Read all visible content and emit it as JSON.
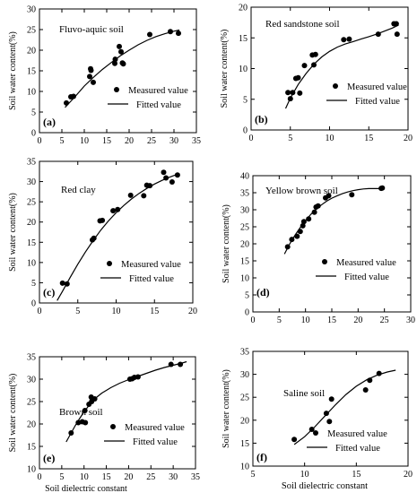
{
  "figure": {
    "ylabel": "Soil water content(%)",
    "xlabel_left": "Soil dielectric constant",
    "xlabel_right": "Soil dielectric constant",
    "legend_measured": "Measured value",
    "legend_fitted": "Fitted value"
  },
  "chart_data": [
    {
      "type": "scatter",
      "panel": "(a)",
      "title": "Fluvo-aquic soil",
      "xlim": [
        0,
        35
      ],
      "ylim": [
        0,
        30
      ],
      "xticks": [
        0,
        5,
        10,
        15,
        20,
        25,
        30,
        35
      ],
      "yticks": [
        0,
        5,
        10,
        15,
        20,
        25,
        30
      ],
      "series": [
        {
          "name": "Measured value",
          "points": [
            [
              6,
              7.2
            ],
            [
              7,
              8.7
            ],
            [
              7.6,
              8.8
            ],
            [
              11.2,
              13.6
            ],
            [
              11.4,
              15.5
            ],
            [
              11.5,
              15.1
            ],
            [
              12,
              12.2
            ],
            [
              16.8,
              16.8
            ],
            [
              16.9,
              17.8
            ],
            [
              17.8,
              20.9
            ],
            [
              18.2,
              19.6
            ],
            [
              18.5,
              16.9
            ],
            [
              18.7,
              16.7
            ],
            [
              24.6,
              23.8
            ],
            [
              29.2,
              24.5
            ],
            [
              31,
              24.1
            ]
          ]
        },
        {
          "name": "Fitted value",
          "line": [
            [
              5.7,
              6.1
            ],
            [
              8,
              8.8
            ],
            [
              10,
              11.3
            ],
            [
              12,
              13.4
            ],
            [
              14,
              15.3
            ],
            [
              16,
              17
            ],
            [
              18,
              18.6
            ],
            [
              20,
              20
            ],
            [
              22,
              21.3
            ],
            [
              24,
              22.4
            ],
            [
              26,
              23.3
            ],
            [
              28,
              24
            ],
            [
              30,
              24.6
            ],
            [
              31.2,
              24.9
            ]
          ]
        }
      ]
    },
    {
      "type": "scatter",
      "panel": "(b)",
      "title": "Red sandstone soil",
      "xlim": [
        0,
        20
      ],
      "ylim": [
        0,
        20
      ],
      "xticks": [
        0,
        5,
        10,
        15,
        20
      ],
      "yticks": [
        0,
        5,
        10,
        15,
        20
      ],
      "series": [
        {
          "name": "Measured value",
          "points": [
            [
              4.7,
              6.1
            ],
            [
              5,
              5.1
            ],
            [
              5.3,
              6.1
            ],
            [
              5.7,
              8.4
            ],
            [
              6,
              8.5
            ],
            [
              6.2,
              6
            ],
            [
              6.8,
              10.5
            ],
            [
              7.8,
              12.2
            ],
            [
              8,
              10.6
            ],
            [
              8.2,
              12.3
            ],
            [
              11.8,
              14.7
            ],
            [
              12.5,
              14.8
            ],
            [
              16.2,
              15.6
            ],
            [
              18.2,
              17.3
            ],
            [
              18.5,
              17.3
            ],
            [
              18.6,
              15.6
            ]
          ]
        },
        {
          "name": "Fitted value",
          "line": [
            [
              4.4,
              3.5
            ],
            [
              5,
              5.2
            ],
            [
              6,
              7.4
            ],
            [
              7,
              9.2
            ],
            [
              8,
              10.7
            ],
            [
              9,
              11.9
            ],
            [
              10,
              12.8
            ],
            [
              11,
              13.5
            ],
            [
              12,
              14
            ],
            [
              13,
              14.4
            ],
            [
              14,
              14.8
            ],
            [
              15,
              15.2
            ],
            [
              16,
              15.6
            ],
            [
              17,
              16.1
            ],
            [
              18,
              16.6
            ],
            [
              18.8,
              17.1
            ]
          ]
        }
      ]
    },
    {
      "type": "scatter",
      "panel": "(c)",
      "title": "Red clay",
      "xlim": [
        0,
        20
      ],
      "ylim": [
        0,
        35
      ],
      "xticks": [
        0,
        5,
        10,
        15,
        20
      ],
      "yticks": [
        0,
        5,
        10,
        15,
        20,
        25,
        30,
        35
      ],
      "series": [
        {
          "name": "Measured value",
          "points": [
            [
              3,
              4.9
            ],
            [
              3.6,
              4.7
            ],
            [
              6.9,
              15.6
            ],
            [
              7.1,
              16
            ],
            [
              7.9,
              20.3
            ],
            [
              8.2,
              20.4
            ],
            [
              9.6,
              22.8
            ],
            [
              10.2,
              23.1
            ],
            [
              11.9,
              26.6
            ],
            [
              13.6,
              26.5
            ],
            [
              14,
              29.1
            ],
            [
              14.4,
              29
            ],
            [
              16.2,
              32.3
            ],
            [
              16.5,
              30.9
            ],
            [
              17.3,
              29.9
            ],
            [
              18,
              31.6
            ]
          ]
        },
        {
          "name": "Fitted value",
          "line": [
            [
              2.3,
              0.6
            ],
            [
              3,
              2.9
            ],
            [
              4,
              6.3
            ],
            [
              5,
              9.6
            ],
            [
              6,
              12.6
            ],
            [
              7,
              15.4
            ],
            [
              8,
              18
            ],
            [
              9,
              20.3
            ],
            [
              10,
              22.3
            ],
            [
              11,
              24.1
            ],
            [
              12,
              25.7
            ],
            [
              13,
              27.1
            ],
            [
              14,
              28.3
            ],
            [
              15,
              29.4
            ],
            [
              16,
              30.3
            ],
            [
              17,
              31.1
            ],
            [
              17.7,
              31.6
            ]
          ]
        }
      ]
    },
    {
      "type": "scatter",
      "panel": "(d)",
      "title": "Yellow brown soil",
      "xlim": [
        0,
        30
      ],
      "ylim": [
        0,
        40
      ],
      "xticks": [
        0,
        5,
        10,
        15,
        20,
        25,
        30
      ],
      "yticks": [
        0,
        5,
        10,
        15,
        20,
        25,
        30,
        35,
        40
      ],
      "series": [
        {
          "name": "Measured value",
          "points": [
            [
              6.6,
              19.1
            ],
            [
              7.4,
              21.3
            ],
            [
              8.4,
              22.2
            ],
            [
              9,
              23.6
            ],
            [
              9.5,
              25.3
            ],
            [
              9.7,
              26.5
            ],
            [
              10.6,
              27.3
            ],
            [
              11.7,
              29.3
            ],
            [
              12,
              30.8
            ],
            [
              12.4,
              31.1
            ],
            [
              13.8,
              33.5
            ],
            [
              14.4,
              34.1
            ],
            [
              18.8,
              34.4
            ],
            [
              24.4,
              36.3
            ],
            [
              24.6,
              36.4
            ]
          ]
        },
        {
          "name": "Fitted value",
          "line": [
            [
              6,
              17
            ],
            [
              7,
              20
            ],
            [
              8,
              22.5
            ],
            [
              9,
              24.8
            ],
            [
              10,
              26.8
            ],
            [
              11,
              28.6
            ],
            [
              12,
              30.1
            ],
            [
              13,
              31.4
            ],
            [
              14,
              32.5
            ],
            [
              15,
              33.4
            ],
            [
              16,
              34.1
            ],
            [
              17,
              34.7
            ],
            [
              18,
              35.2
            ],
            [
              19,
              35.6
            ],
            [
              20,
              35.9
            ],
            [
              21,
              36.1
            ],
            [
              22,
              36.2
            ],
            [
              23,
              36.2
            ],
            [
              24.6,
              36.2
            ]
          ]
        }
      ]
    },
    {
      "type": "scatter",
      "panel": "(e)",
      "title": "Brown soil",
      "xlabel": "Soil dielectric constant",
      "xlim": [
        0,
        35
      ],
      "ylim": [
        10,
        35
      ],
      "xticks": [
        0,
        5,
        10,
        15,
        20,
        25,
        30,
        35
      ],
      "yticks": [
        10,
        15,
        20,
        25,
        30,
        35
      ],
      "series": [
        {
          "name": "Measured value",
          "points": [
            [
              7.1,
              18
            ],
            [
              8.7,
              20.3
            ],
            [
              9.6,
              20.5
            ],
            [
              10.2,
              23
            ],
            [
              10.3,
              20.3
            ],
            [
              11.1,
              24.4
            ],
            [
              11.6,
              26
            ],
            [
              11.7,
              25
            ],
            [
              12.4,
              25.6
            ],
            [
              20.3,
              30
            ],
            [
              20.8,
              30.1
            ],
            [
              21.3,
              30.4
            ],
            [
              22.1,
              30.5
            ],
            [
              29.5,
              33.3
            ],
            [
              31.6,
              33.3
            ]
          ]
        },
        {
          "name": "Fitted value",
          "line": [
            [
              6,
              16
            ],
            [
              7,
              17.8
            ],
            [
              8,
              19.6
            ],
            [
              9,
              21.2
            ],
            [
              10,
              22.7
            ],
            [
              11,
              24
            ],
            [
              12,
              25.1
            ],
            [
              13,
              26.1
            ],
            [
              14,
              26.9
            ],
            [
              15,
              27.5
            ],
            [
              16,
              28.1
            ],
            [
              17,
              28.6
            ],
            [
              18,
              29.1
            ],
            [
              19,
              29.5
            ],
            [
              20,
              29.9
            ],
            [
              22,
              30.6
            ],
            [
              24,
              31.3
            ],
            [
              26,
              32
            ],
            [
              28,
              32.6
            ],
            [
              30,
              33.1
            ],
            [
              32,
              33.6
            ],
            [
              33,
              33.9
            ]
          ]
        }
      ]
    },
    {
      "type": "scatter",
      "panel": "(f)",
      "title": "Saline soil",
      "xlabel": "Soil dielectric constant",
      "xlim": [
        5,
        20
      ],
      "ylim": [
        10,
        35
      ],
      "xticks": [
        5,
        10,
        15,
        20
      ],
      "yticks": [
        10,
        15,
        20,
        25,
        30,
        35
      ],
      "series": [
        {
          "name": "Measured value",
          "points": [
            [
              9,
              15.8
            ],
            [
              10.7,
              18
            ],
            [
              12.1,
              21.5
            ],
            [
              12.4,
              19.7
            ],
            [
              12.6,
              24.6
            ],
            [
              15.9,
              26.6
            ],
            [
              16.3,
              28.7
            ],
            [
              17.2,
              30.2
            ]
          ]
        },
        {
          "name": "Fitted value",
          "line": [
            [
              9,
              14.7
            ],
            [
              10,
              16.4
            ],
            [
              11,
              18.6
            ],
            [
              12,
              21
            ],
            [
              13,
              23.4
            ],
            [
              14,
              25.6
            ],
            [
              15,
              27.4
            ],
            [
              16,
              28.8
            ],
            [
              17,
              29.8
            ],
            [
              18,
              30.5
            ],
            [
              18.8,
              30.9
            ]
          ]
        }
      ]
    }
  ]
}
